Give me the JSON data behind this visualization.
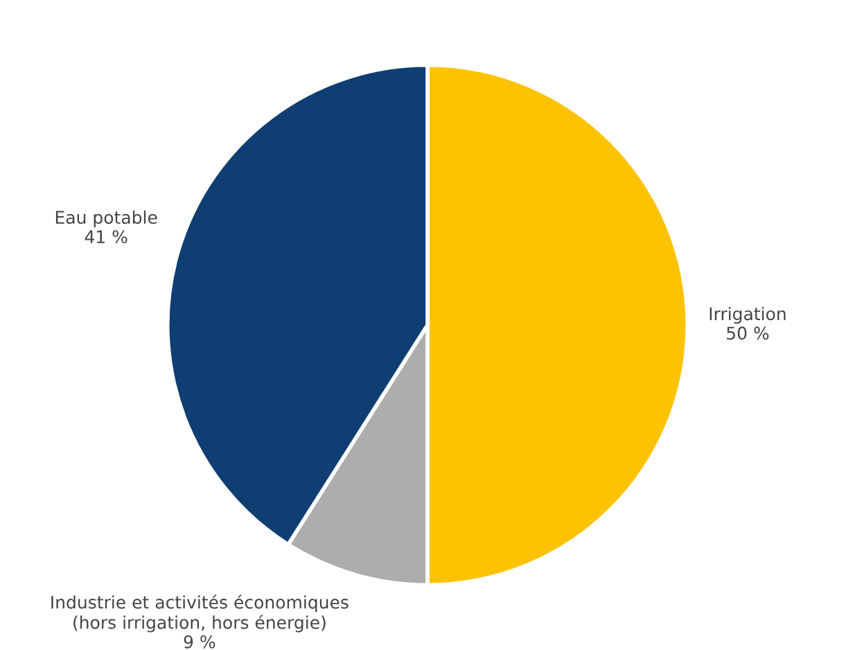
{
  "chart_data": {
    "type": "pie",
    "categories": [
      "Irrigation",
      "Industrie et activités économiques\n(hors irrigation, hors énergie)",
      "Eau potable"
    ],
    "values": [
      50,
      9,
      41
    ],
    "colors": [
      "#fdc300",
      "#aeadad",
      "#0f3e73"
    ],
    "value_labels": [
      "50 %",
      "9 %",
      "41 %"
    ],
    "legend": false
  }
}
